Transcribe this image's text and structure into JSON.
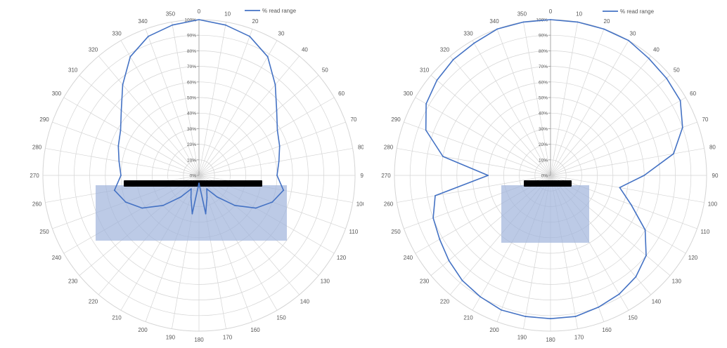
{
  "chart_data": [
    {
      "type": "polar",
      "legend": "% read range",
      "legend_position": "top-right",
      "series_color": "#4472C4",
      "overlay_fill": "#9FB4DC",
      "antenna_color": "#000000",
      "angle_labels": [
        "0",
        "10",
        "20",
        "30",
        "40",
        "50",
        "60",
        "70",
        "80",
        "90",
        "100",
        "110",
        "120",
        "130",
        "140",
        "150",
        "160",
        "170",
        "180",
        "190",
        "200",
        "210",
        "220",
        "230",
        "240",
        "250",
        "260",
        "270",
        "280",
        "290",
        "300",
        "310",
        "320",
        "330",
        "340",
        "350"
      ],
      "radial_labels": [
        "0%",
        "10%",
        "20%",
        "30%",
        "40%",
        "50%",
        "60%",
        "70%",
        "80%",
        "90%",
        "100%"
      ],
      "radial_range": [
        0,
        100
      ],
      "grid": true,
      "angles": [
        0,
        10,
        20,
        30,
        40,
        50,
        60,
        70,
        80,
        90,
        100,
        110,
        120,
        130,
        140,
        150,
        160,
        170,
        180,
        190,
        200,
        210,
        220,
        230,
        240,
        250,
        260,
        270,
        280,
        290,
        300,
        310,
        320,
        330,
        340,
        350
      ],
      "values": [
        100,
        98,
        95,
        88,
        76,
        65,
        58,
        55,
        52,
        50,
        55,
        50,
        42,
        30,
        18,
        10,
        15,
        25,
        5,
        25,
        15,
        10,
        18,
        30,
        42,
        50,
        55,
        50,
        52,
        55,
        58,
        65,
        76,
        88,
        95,
        98
      ]
    },
    {
      "type": "polar",
      "legend": "% read range",
      "legend_position": "top-right",
      "series_color": "#4472C4",
      "overlay_fill": "#9FB4DC",
      "antenna_color": "#000000",
      "angle_labels": [
        "0",
        "10",
        "20",
        "30",
        "40",
        "50",
        "60",
        "70",
        "80",
        "90",
        "100",
        "110",
        "120",
        "130",
        "140",
        "150",
        "160",
        "170",
        "180",
        "190",
        "200",
        "210",
        "220",
        "230",
        "240",
        "250",
        "260",
        "270",
        "280",
        "290",
        "300",
        "310",
        "320",
        "330",
        "340",
        "350"
      ],
      "radial_labels": [
        "0%",
        "10%",
        "20%",
        "30%",
        "40%",
        "50%",
        "60%",
        "70%",
        "80%",
        "90%",
        "100%"
      ],
      "radial_range": [
        0,
        100
      ],
      "grid": true,
      "angles": [
        0,
        10,
        20,
        30,
        40,
        50,
        60,
        70,
        80,
        90,
        100,
        110,
        120,
        130,
        140,
        150,
        160,
        170,
        180,
        190,
        200,
        210,
        220,
        230,
        240,
        250,
        260,
        270,
        280,
        290,
        300,
        310,
        320,
        330,
        340,
        350
      ],
      "values": [
        100,
        100,
        100,
        100,
        98,
        97,
        96,
        90,
        80,
        60,
        45,
        55,
        70,
        80,
        85,
        88,
        90,
        92,
        92,
        92,
        92,
        90,
        88,
        85,
        82,
        80,
        75,
        40,
        70,
        85,
        92,
        95,
        97,
        98,
        100,
        100
      ]
    }
  ]
}
